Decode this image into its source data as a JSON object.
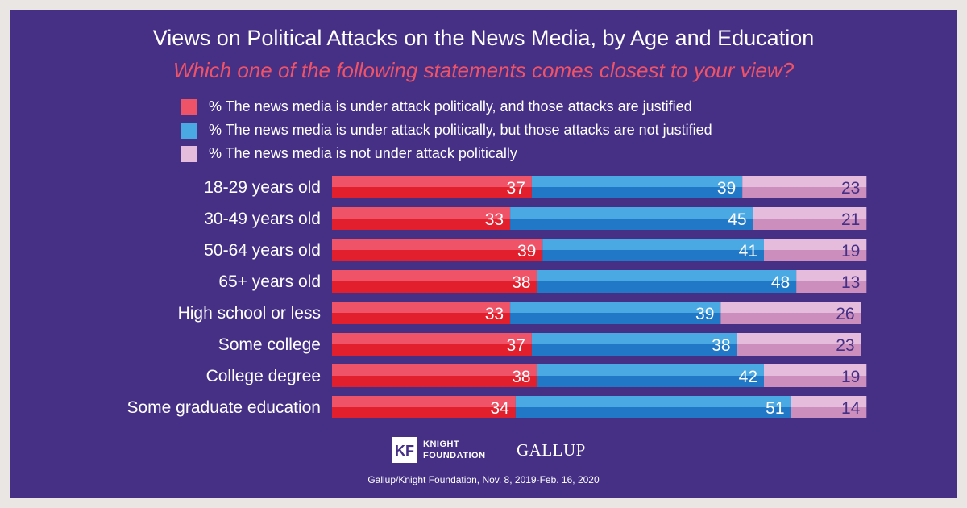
{
  "header": {
    "title": "Views on Political Attacks on the News Media, by Age and Education",
    "subtitle": "Which one of the following statements comes closest to your view?"
  },
  "colors": {
    "background": "#453085",
    "justified": "#e21f2d",
    "not_justified": "#2178c7",
    "not_under_attack": "#cc8fbd",
    "subtitle": "#ef5367"
  },
  "chart_data": {
    "type": "bar",
    "orientation": "horizontal",
    "stacked": true,
    "title": "Views on Political Attacks on the News Media, by Age and Education",
    "subtitle": "Which one of the following statements comes closest to your view?",
    "categories": [
      "18-29 years old",
      "30-49 years old",
      "50-64 years old",
      "65+ years old",
      "High school or less",
      "Some college",
      "College degree",
      "Some graduate education"
    ],
    "series": [
      {
        "name": "% The news media is under attack politically, and those attacks are justified",
        "color": "#e21f2d",
        "values": [
          37,
          33,
          39,
          38,
          33,
          37,
          38,
          34
        ]
      },
      {
        "name": "% The news media is under attack politically, but those attacks are not justified",
        "color": "#2178c7",
        "values": [
          39,
          45,
          41,
          48,
          39,
          38,
          42,
          51
        ]
      },
      {
        "name": "% The news media is not under attack politically",
        "color": "#cc8fbd",
        "values": [
          23,
          21,
          19,
          13,
          26,
          23,
          19,
          14
        ]
      }
    ],
    "xlim": [
      0,
      100
    ],
    "grid": false,
    "legend": "top"
  },
  "footer": {
    "knight_logo_mark": "KF",
    "knight_logo_line1": "KNIGHT",
    "knight_logo_line2": "FOUNDATION",
    "gallup_logo": "GALLUP",
    "source": "Gallup/Knight Foundation, Nov. 8, 2019-Feb. 16, 2020"
  }
}
